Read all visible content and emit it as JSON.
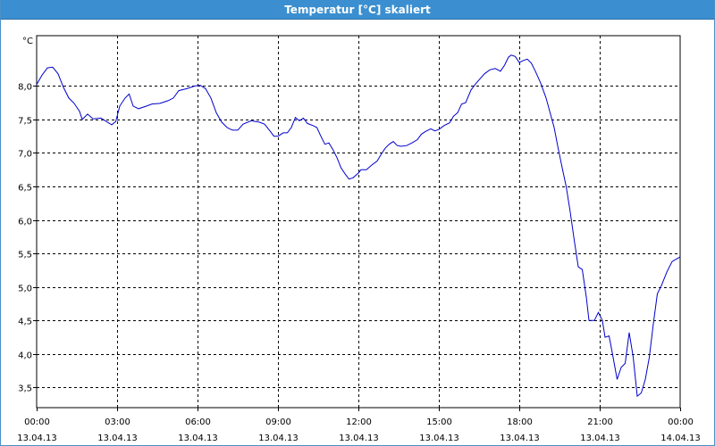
{
  "window": {
    "title": "Temperatur [°C] skaliert"
  },
  "chart_data": {
    "type": "line",
    "title": "Temperatur [°C] skaliert",
    "ylabel": "°C",
    "xlabel": "",
    "ylim": [
      3.2,
      8.75
    ],
    "xlim_hours": [
      0,
      24
    ],
    "grid": true,
    "line_color": "#0000cc",
    "y_ticks": [
      {
        "v": 3.5,
        "label": "3,5"
      },
      {
        "v": 4.0,
        "label": "4,0"
      },
      {
        "v": 4.5,
        "label": "4,5"
      },
      {
        "v": 5.0,
        "label": "5,0"
      },
      {
        "v": 5.5,
        "label": "5,5"
      },
      {
        "v": 6.0,
        "label": "6,0"
      },
      {
        "v": 6.5,
        "label": "6,5"
      },
      {
        "v": 7.0,
        "label": "7,0"
      },
      {
        "v": 7.5,
        "label": "7,5"
      },
      {
        "v": 8.0,
        "label": "8,0"
      }
    ],
    "x_ticks": [
      {
        "h": 0,
        "time": "00:00",
        "date": "13.04.13"
      },
      {
        "h": 3,
        "time": "03:00",
        "date": "13.04.13"
      },
      {
        "h": 6,
        "time": "06:00",
        "date": "13.04.13"
      },
      {
        "h": 9,
        "time": "09:00",
        "date": "13.04.13"
      },
      {
        "h": 12,
        "time": "12:00",
        "date": "13.04.13"
      },
      {
        "h": 15,
        "time": "15:00",
        "date": "13.04.13"
      },
      {
        "h": 18,
        "time": "18:00",
        "date": "13.04.13"
      },
      {
        "h": 21,
        "time": "21:00",
        "date": "13.04.13"
      },
      {
        "h": 24,
        "time": "00:00",
        "date": "14.04.13"
      }
    ],
    "series": [
      {
        "points": [
          [
            0.0,
            8.02
          ],
          [
            0.2,
            8.16
          ],
          [
            0.4,
            8.27
          ],
          [
            0.6,
            8.28
          ],
          [
            0.8,
            8.18
          ],
          [
            1.0,
            7.98
          ],
          [
            1.2,
            7.82
          ],
          [
            1.4,
            7.74
          ],
          [
            1.6,
            7.62
          ],
          [
            1.7,
            7.5
          ],
          [
            1.9,
            7.58
          ],
          [
            2.1,
            7.51
          ],
          [
            2.4,
            7.52
          ],
          [
            2.6,
            7.47
          ],
          [
            2.8,
            7.42
          ],
          [
            2.95,
            7.47
          ],
          [
            3.1,
            7.7
          ],
          [
            3.3,
            7.82
          ],
          [
            3.45,
            7.88
          ],
          [
            3.6,
            7.7
          ],
          [
            3.8,
            7.66
          ],
          [
            4.1,
            7.7
          ],
          [
            4.3,
            7.73
          ],
          [
            4.6,
            7.74
          ],
          [
            4.9,
            7.78
          ],
          [
            5.1,
            7.82
          ],
          [
            5.3,
            7.93
          ],
          [
            5.6,
            7.96
          ],
          [
            5.9,
            8.0
          ],
          [
            6.1,
            8.01
          ],
          [
            6.3,
            7.96
          ],
          [
            6.5,
            7.82
          ],
          [
            6.7,
            7.6
          ],
          [
            6.9,
            7.46
          ],
          [
            7.1,
            7.38
          ],
          [
            7.3,
            7.34
          ],
          [
            7.5,
            7.34
          ],
          [
            7.7,
            7.43
          ],
          [
            8.0,
            7.48
          ],
          [
            8.3,
            7.46
          ],
          [
            8.5,
            7.43
          ],
          [
            8.7,
            7.33
          ],
          [
            8.85,
            7.25
          ],
          [
            9.0,
            7.25
          ],
          [
            9.2,
            7.3
          ],
          [
            9.35,
            7.3
          ],
          [
            9.5,
            7.38
          ],
          [
            9.65,
            7.53
          ],
          [
            9.8,
            7.48
          ],
          [
            9.95,
            7.52
          ],
          [
            10.1,
            7.44
          ],
          [
            10.3,
            7.41
          ],
          [
            10.45,
            7.38
          ],
          [
            10.6,
            7.25
          ],
          [
            10.75,
            7.13
          ],
          [
            10.9,
            7.15
          ],
          [
            11.05,
            7.05
          ],
          [
            11.2,
            6.93
          ],
          [
            11.35,
            6.78
          ],
          [
            11.5,
            6.69
          ],
          [
            11.65,
            6.61
          ],
          [
            11.8,
            6.63
          ],
          [
            12.0,
            6.7
          ],
          [
            12.1,
            6.75
          ],
          [
            12.3,
            6.75
          ],
          [
            12.5,
            6.82
          ],
          [
            12.7,
            6.88
          ],
          [
            12.85,
            6.98
          ],
          [
            13.0,
            7.07
          ],
          [
            13.15,
            7.13
          ],
          [
            13.3,
            7.17
          ],
          [
            13.45,
            7.11
          ],
          [
            13.6,
            7.1
          ],
          [
            13.8,
            7.11
          ],
          [
            14.0,
            7.15
          ],
          [
            14.2,
            7.2
          ],
          [
            14.35,
            7.28
          ],
          [
            14.5,
            7.32
          ],
          [
            14.7,
            7.36
          ],
          [
            14.85,
            7.33
          ],
          [
            15.0,
            7.35
          ],
          [
            15.2,
            7.41
          ],
          [
            15.4,
            7.45
          ],
          [
            15.55,
            7.55
          ],
          [
            15.7,
            7.6
          ],
          [
            15.85,
            7.73
          ],
          [
            16.0,
            7.75
          ],
          [
            16.2,
            7.94
          ],
          [
            16.35,
            8.02
          ],
          [
            16.5,
            8.09
          ],
          [
            16.7,
            8.18
          ],
          [
            16.9,
            8.24
          ],
          [
            17.1,
            8.26
          ],
          [
            17.3,
            8.22
          ],
          [
            17.45,
            8.31
          ],
          [
            17.6,
            8.43
          ],
          [
            17.7,
            8.46
          ],
          [
            17.85,
            8.44
          ],
          [
            18.0,
            8.35
          ],
          [
            18.15,
            8.38
          ],
          [
            18.3,
            8.4
          ],
          [
            18.45,
            8.34
          ],
          [
            18.6,
            8.22
          ],
          [
            18.8,
            8.04
          ],
          [
            19.0,
            7.82
          ],
          [
            19.15,
            7.6
          ],
          [
            19.3,
            7.38
          ],
          [
            19.45,
            7.07
          ],
          [
            19.6,
            6.78
          ],
          [
            19.75,
            6.5
          ],
          [
            19.9,
            6.12
          ],
          [
            20.05,
            5.7
          ],
          [
            20.2,
            5.3
          ],
          [
            20.35,
            5.26
          ],
          [
            20.5,
            4.85
          ],
          [
            20.6,
            4.5
          ],
          [
            20.8,
            4.5
          ],
          [
            20.95,
            4.62
          ],
          [
            21.1,
            4.5
          ],
          [
            21.2,
            4.25
          ],
          [
            21.35,
            4.27
          ],
          [
            21.5,
            3.95
          ],
          [
            21.65,
            3.62
          ],
          [
            21.8,
            3.8
          ],
          [
            21.95,
            3.86
          ],
          [
            22.1,
            4.32
          ],
          [
            22.25,
            3.95
          ],
          [
            22.4,
            3.37
          ],
          [
            22.55,
            3.42
          ],
          [
            22.7,
            3.62
          ],
          [
            22.85,
            3.95
          ],
          [
            23.0,
            4.45
          ],
          [
            23.15,
            4.9
          ],
          [
            23.3,
            5.02
          ],
          [
            23.5,
            5.22
          ],
          [
            23.7,
            5.38
          ],
          [
            24.0,
            5.45
          ]
        ]
      }
    ]
  }
}
